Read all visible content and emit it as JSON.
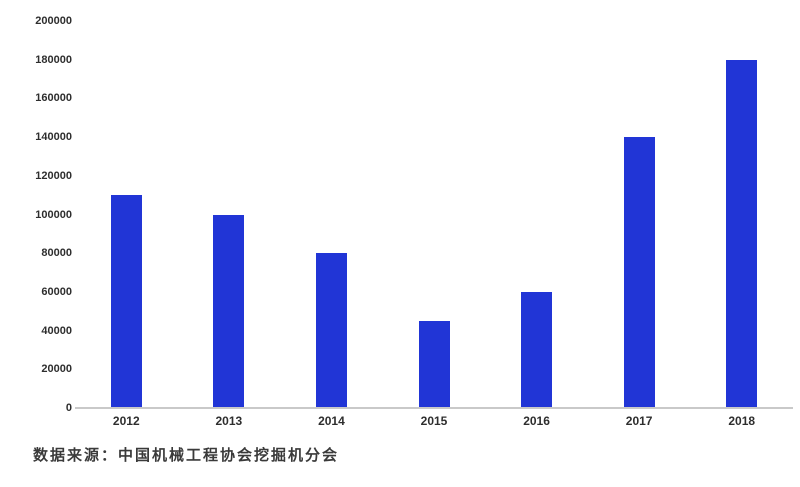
{
  "chart_data": {
    "type": "bar",
    "categories": [
      "2012",
      "2013",
      "2014",
      "2015",
      "2016",
      "2017",
      "2018"
    ],
    "values": [
      110000,
      100000,
      80000,
      45000,
      60000,
      140000,
      180000
    ],
    "title": "",
    "xlabel": "",
    "ylabel": "",
    "ylim": [
      0,
      200000
    ],
    "ytick_step": 20000,
    "ytick_labels": [
      "0",
      "20000",
      "40000",
      "60000",
      "80000",
      "100000",
      "120000",
      "140000",
      "160000",
      "180000",
      "200000"
    ],
    "grid": false,
    "legend_position": "none",
    "bar_color": "#2135d6",
    "axis_line_color": "#c9c9c9",
    "tick_label_color": "#2e2e2e"
  },
  "caption": {
    "text": "数据来源：中国机械工程协会挖掘机分会"
  }
}
